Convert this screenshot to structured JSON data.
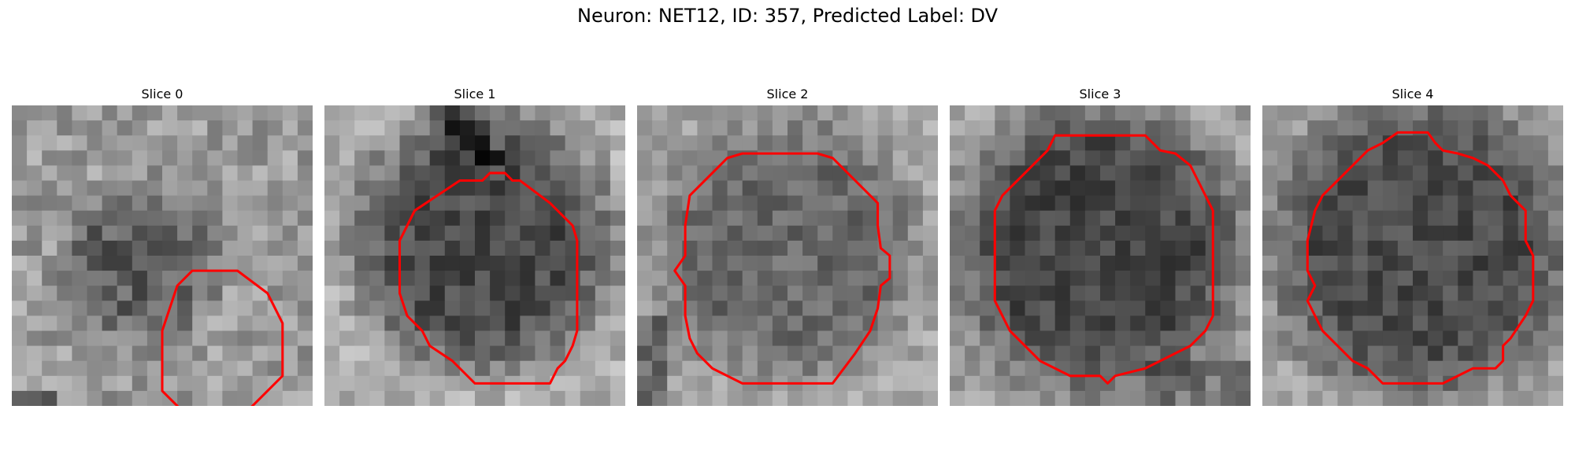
{
  "figure": {
    "title": "Neuron: NET12, ID: 357, Predicted Label: DV"
  },
  "colors": {
    "contour": "#ff0000",
    "background": "#ffffff"
  },
  "slices": [
    {
      "title": "Slice 0",
      "contour": [
        [
          12,
          11
        ],
        [
          15,
          11
        ],
        [
          17,
          12.5
        ],
        [
          18,
          14.5
        ],
        [
          18,
          18
        ],
        [
          16,
          20
        ],
        [
          15,
          21
        ],
        [
          12,
          21
        ],
        [
          11,
          20
        ],
        [
          10,
          19
        ],
        [
          10,
          15
        ],
        [
          11,
          12
        ]
      ]
    },
    {
      "title": "Slice 1",
      "contour": [
        [
          10.5,
          5
        ],
        [
          11,
          4.5
        ],
        [
          12,
          4.5
        ],
        [
          12.5,
          5
        ],
        [
          13,
          5
        ],
        [
          15,
          6.5
        ],
        [
          16.5,
          8
        ],
        [
          16.8,
          9
        ],
        [
          16.8,
          15
        ],
        [
          16.5,
          16
        ],
        [
          16,
          17
        ],
        [
          15.5,
          17.5
        ],
        [
          15,
          18.5
        ],
        [
          12.5,
          18.5
        ],
        [
          10,
          18.5
        ],
        [
          8.5,
          17
        ],
        [
          7,
          16
        ],
        [
          6.5,
          15
        ],
        [
          5.5,
          14
        ],
        [
          5,
          12.5
        ],
        [
          5,
          9
        ],
        [
          6,
          7
        ],
        [
          7.5,
          6
        ],
        [
          9,
          5
        ]
      ]
    },
    {
      "title": "Slice 2",
      "contour": [
        [
          7,
          3.2
        ],
        [
          12,
          3.2
        ],
        [
          13,
          3.5
        ],
        [
          14,
          4.5
        ],
        [
          15,
          5.5
        ],
        [
          16,
          6.5
        ],
        [
          16,
          8
        ],
        [
          16.2,
          9.5
        ],
        [
          16.8,
          10
        ],
        [
          16.8,
          11.5
        ],
        [
          16.2,
          12
        ],
        [
          16,
          13.5
        ],
        [
          15.5,
          15
        ],
        [
          14.5,
          16.5
        ],
        [
          13,
          18.5
        ],
        [
          7,
          18.5
        ],
        [
          5,
          17.5
        ],
        [
          4,
          16.5
        ],
        [
          3.5,
          15.5
        ],
        [
          3.2,
          14
        ],
        [
          3.2,
          12
        ],
        [
          2.5,
          11
        ],
        [
          3.2,
          10
        ],
        [
          3.2,
          8
        ],
        [
          3.5,
          6
        ],
        [
          4.5,
          5
        ],
        [
          5.5,
          4
        ],
        [
          6,
          3.5
        ]
      ]
    },
    {
      "title": "Slice 3",
      "contour": [
        [
          7,
          2
        ],
        [
          13,
          2
        ],
        [
          14,
          3
        ],
        [
          15,
          3.2
        ],
        [
          16,
          4
        ],
        [
          16.5,
          5
        ],
        [
          17,
          6
        ],
        [
          17.5,
          7
        ],
        [
          17.5,
          14
        ],
        [
          17,
          15
        ],
        [
          16,
          16
        ],
        [
          15,
          16.5
        ],
        [
          14,
          17
        ],
        [
          13,
          17.5
        ],
        [
          11,
          18
        ],
        [
          10.5,
          18.5
        ],
        [
          10,
          18
        ],
        [
          8,
          18
        ],
        [
          7,
          17.5
        ],
        [
          6,
          17
        ],
        [
          5,
          16
        ],
        [
          4,
          15
        ],
        [
          3.5,
          14
        ],
        [
          3,
          13
        ],
        [
          3,
          7
        ],
        [
          3.5,
          6
        ],
        [
          4.5,
          5
        ],
        [
          5.5,
          4
        ],
        [
          6.5,
          3
        ]
      ]
    },
    {
      "title": "Slice 4",
      "contour": [
        [
          9,
          1.8
        ],
        [
          11,
          1.8
        ],
        [
          11.5,
          2.5
        ],
        [
          12,
          3
        ],
        [
          13,
          3.2
        ],
        [
          14,
          3.5
        ],
        [
          15,
          4
        ],
        [
          16,
          5
        ],
        [
          16.5,
          6
        ],
        [
          17.5,
          7
        ],
        [
          17.5,
          9
        ],
        [
          18,
          10
        ],
        [
          18,
          13
        ],
        [
          17.5,
          14
        ],
        [
          16.5,
          15.5
        ],
        [
          16,
          16
        ],
        [
          16,
          17
        ],
        [
          15.5,
          17.5
        ],
        [
          14,
          17.5
        ],
        [
          13,
          18
        ],
        [
          12,
          18.5
        ],
        [
          10,
          18.5
        ],
        [
          8,
          18.5
        ],
        [
          7,
          17.5
        ],
        [
          6,
          17
        ],
        [
          5,
          16
        ],
        [
          4,
          15
        ],
        [
          3.5,
          14
        ],
        [
          3,
          13
        ],
        [
          3.5,
          12
        ],
        [
          3,
          11
        ],
        [
          3,
          9
        ],
        [
          3.5,
          7
        ],
        [
          4,
          6
        ],
        [
          5,
          5
        ],
        [
          6,
          4
        ],
        [
          7,
          3
        ],
        [
          8,
          2.5
        ]
      ]
    }
  ]
}
